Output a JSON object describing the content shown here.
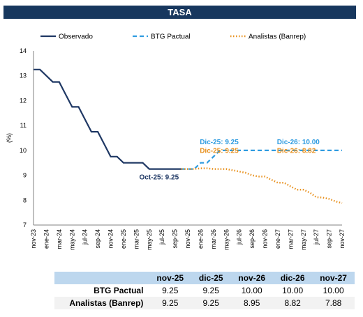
{
  "title": "TASA",
  "chart_data": {
    "type": "line",
    "ylabel": "(%)",
    "ylim": [
      7,
      14
    ],
    "yticks": [
      7,
      8,
      9,
      10,
      11,
      12,
      13,
      14
    ],
    "x_tick_labels": [
      "nov-23",
      "ene-24",
      "mar-24",
      "may-24",
      "jul-24",
      "sep-24",
      "nov-24",
      "ene-25",
      "mar-25",
      "may-25",
      "jul-25",
      "sep-25",
      "nov-25",
      "ene-26",
      "mar-26",
      "may-26",
      "jul-26",
      "sep-26",
      "nov-26",
      "ene-27",
      "mar-27",
      "may-27",
      "jul-27",
      "sep-27",
      "nov-27"
    ],
    "legend_position": "top",
    "series": [
      {
        "name": "Observado",
        "color": "#1f3864",
        "style": "solid",
        "x": [
          "nov-23",
          "dic-23",
          "ene-24",
          "feb-24",
          "mar-24",
          "abr-24",
          "may-24",
          "jun-24",
          "jul-24",
          "ago-24",
          "sep-24",
          "oct-24",
          "nov-24",
          "dic-24",
          "ene-25",
          "feb-25",
          "mar-25",
          "abr-25",
          "may-25",
          "jun-25",
          "jul-25",
          "ago-25",
          "sep-25",
          "oct-25"
        ],
        "values": [
          13.25,
          13.25,
          13.0,
          12.75,
          12.75,
          12.25,
          11.75,
          11.75,
          11.25,
          10.75,
          10.75,
          10.25,
          9.75,
          9.75,
          9.5,
          9.5,
          9.5,
          9.5,
          9.25,
          9.25,
          9.25,
          9.25,
          9.25,
          9.25
        ]
      },
      {
        "name": "BTG Pactual",
        "color": "#2e9be0",
        "style": "dashed",
        "x": [
          "oct-25",
          "nov-25",
          "dic-25",
          "ene-26",
          "feb-26",
          "mar-26",
          "abr-26",
          "may-26",
          "jun-26",
          "jul-26",
          "ago-26",
          "sep-26",
          "oct-26",
          "nov-26",
          "dic-26",
          "ene-27",
          "feb-27",
          "mar-27",
          "abr-27",
          "may-27",
          "jun-27",
          "jul-27",
          "ago-27",
          "sep-27",
          "oct-27",
          "nov-27"
        ],
        "values": [
          9.25,
          9.25,
          9.25,
          9.5,
          9.5,
          9.75,
          10.0,
          10.0,
          10.0,
          10.0,
          10.0,
          10.0,
          10.0,
          10.0,
          10.0,
          10.0,
          10.0,
          10.0,
          10.0,
          10.0,
          10.0,
          10.0,
          10.0,
          10.0,
          10.0,
          10.0
        ]
      },
      {
        "name": "Analistas (Banrep)",
        "color": "#e8901c",
        "style": "dotted",
        "x": [
          "oct-25",
          "nov-25",
          "dic-25",
          "ene-26",
          "feb-26",
          "mar-26",
          "abr-26",
          "may-26",
          "jun-26",
          "jul-26",
          "ago-26",
          "sep-26",
          "oct-26",
          "nov-26",
          "dic-26",
          "ene-27",
          "feb-27",
          "mar-27",
          "abr-27",
          "may-27",
          "jun-27",
          "jul-27",
          "ago-27",
          "sep-27",
          "oct-27",
          "nov-27"
        ],
        "values": [
          9.25,
          9.25,
          9.25,
          9.28,
          9.28,
          9.25,
          9.25,
          9.25,
          9.2,
          9.15,
          9.1,
          9.0,
          8.95,
          8.95,
          8.82,
          8.7,
          8.7,
          8.55,
          8.42,
          8.42,
          8.3,
          8.12,
          8.1,
          8.05,
          7.95,
          7.88
        ]
      }
    ],
    "annotations": [
      {
        "text": "Oct-25: 9.25",
        "color": "#1f3864",
        "x": "oct-25",
        "y": 9.25
      },
      {
        "text": "Dic-25: 9.25",
        "color": "#2e9be0",
        "x": "dic-25",
        "y": 10.25
      },
      {
        "text": "Dic-25: 9.25",
        "color": "#e8901c",
        "x": "dic-25",
        "y": 9.9
      },
      {
        "text": "Dic-26: 10.00",
        "color": "#2e9be0",
        "x": "dic-26",
        "y": 10.25
      },
      {
        "text": "Dic-26: 8.82",
        "color": "#e8901c",
        "x": "dic-26",
        "y": 9.9
      }
    ]
  },
  "table": {
    "headers": [
      "",
      "nov-25",
      "dic-25",
      "nov-26",
      "dic-26",
      "nov-27"
    ],
    "rows": [
      {
        "label": "BTG Pactual",
        "values": [
          "9.25",
          "9.25",
          "10.00",
          "10.00",
          "10.00"
        ]
      },
      {
        "label": "Analistas (Banrep)",
        "values": [
          "9.25",
          "9.25",
          "8.95",
          "8.82",
          "7.88"
        ]
      }
    ]
  }
}
